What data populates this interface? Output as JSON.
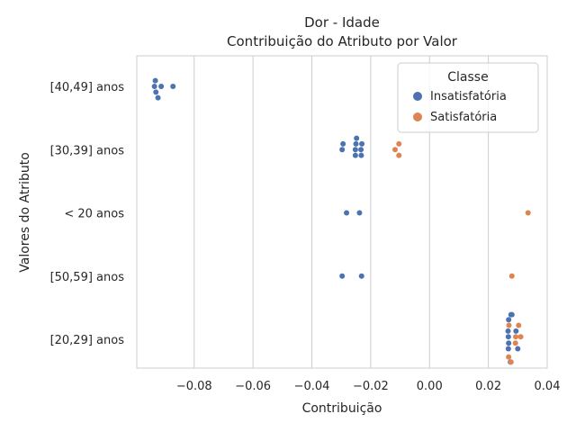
{
  "chart_data": {
    "type": "scatter",
    "title": "Dor - Idade",
    "subtitle": "Contribuição do Atributo por Valor",
    "xlabel": "Contribuição",
    "ylabel": "Valores do Atributo",
    "xlim": [
      -0.0995,
      0.04
    ],
    "x_ticks": [
      -0.08,
      -0.06,
      -0.04,
      -0.02,
      0.0,
      0.02,
      0.04
    ],
    "x_tick_labels": [
      "−0.08",
      "−0.06",
      "−0.04",
      "−0.02",
      "0.00",
      "0.02",
      "0.04"
    ],
    "categories": [
      "[40,49] anos",
      "[30,39] anos",
      "< 20 anos",
      "[50,59] anos",
      "[20,29] anos"
    ],
    "grid": "vertical",
    "legend": {
      "title": "Classe",
      "placement": "top-right"
    },
    "series": [
      {
        "name": "Insatisfatória",
        "color": "#4c72b0",
        "points": [
          {
            "category": "[40,49] anos",
            "x": -0.0932,
            "offset": -0.09
          },
          {
            "category": "[40,49] anos",
            "x": -0.0935,
            "offset": 0.0
          },
          {
            "category": "[40,49] anos",
            "x": -0.0912,
            "offset": 0.0
          },
          {
            "category": "[40,49] anos",
            "x": -0.0872,
            "offset": 0.0
          },
          {
            "category": "[40,49] anos",
            "x": -0.093,
            "offset": 0.09
          },
          {
            "category": "[40,49] anos",
            "x": -0.0923,
            "offset": 0.18
          },
          {
            "category": "[30,39] anos",
            "x": -0.0248,
            "offset": -0.18
          },
          {
            "category": "[30,39] anos",
            "x": -0.0294,
            "offset": -0.09
          },
          {
            "category": "[30,39] anos",
            "x": -0.025,
            "offset": -0.09
          },
          {
            "category": "[30,39] anos",
            "x": -0.023,
            "offset": -0.09
          },
          {
            "category": "[30,39] anos",
            "x": -0.0297,
            "offset": 0.0
          },
          {
            "category": "[30,39] anos",
            "x": -0.0252,
            "offset": 0.0
          },
          {
            "category": "[30,39] anos",
            "x": -0.0233,
            "offset": 0.0
          },
          {
            "category": "[30,39] anos",
            "x": -0.0252,
            "offset": 0.09
          },
          {
            "category": "[30,39] anos",
            "x": -0.0232,
            "offset": 0.09
          },
          {
            "category": "< 20 anos",
            "x": -0.0282,
            "offset": 0.0
          },
          {
            "category": "< 20 anos",
            "x": -0.0238,
            "offset": 0.0
          },
          {
            "category": "[50,59] anos",
            "x": -0.0297,
            "offset": 0.0
          },
          {
            "category": "[50,59] anos",
            "x": -0.0231,
            "offset": 0.0
          },
          {
            "category": "[20,29] anos",
            "x": 0.028,
            "offset": -0.39
          },
          {
            "category": "[20,29] anos",
            "x": 0.0277,
            "offset": -0.39
          },
          {
            "category": "[20,29] anos",
            "x": 0.0269,
            "offset": -0.31
          },
          {
            "category": "[20,29] anos",
            "x": 0.0294,
            "offset": -0.13
          },
          {
            "category": "[20,29] anos",
            "x": 0.0267,
            "offset": -0.13
          },
          {
            "category": "[20,29] anos",
            "x": 0.0268,
            "offset": -0.04
          },
          {
            "category": "[20,29] anos",
            "x": 0.0269,
            "offset": 0.06
          },
          {
            "category": "[20,29] anos",
            "x": 0.03,
            "offset": 0.15
          },
          {
            "category": "[20,29] anos",
            "x": 0.0268,
            "offset": 0.15
          },
          {
            "category": "[20,29] anos",
            "x": 0.0275,
            "offset": 0.36
          }
        ]
      },
      {
        "name": "Satisfatória",
        "color": "#dd8452",
        "points": [
          {
            "category": "[30,39] anos",
            "x": -0.0104,
            "offset": -0.09
          },
          {
            "category": "[30,39] anos",
            "x": -0.0117,
            "offset": 0.0
          },
          {
            "category": "[30,39] anos",
            "x": -0.0104,
            "offset": 0.09
          },
          {
            "category": "< 20 anos",
            "x": 0.0335,
            "offset": 0.0
          },
          {
            "category": "[50,59] anos",
            "x": 0.028,
            "offset": 0.0
          },
          {
            "category": "[20,29] anos",
            "x": 0.027,
            "offset": -0.22
          },
          {
            "category": "[20,29] anos",
            "x": 0.0303,
            "offset": -0.22
          },
          {
            "category": "[20,29] anos",
            "x": 0.031,
            "offset": -0.04
          },
          {
            "category": "[20,29] anos",
            "x": 0.0293,
            "offset": -0.04
          },
          {
            "category": "[20,29] anos",
            "x": 0.0292,
            "offset": 0.06
          },
          {
            "category": "[20,29] anos",
            "x": 0.0269,
            "offset": 0.28
          },
          {
            "category": "[20,29] anos",
            "x": 0.0277,
            "offset": 0.36
          }
        ]
      }
    ]
  }
}
